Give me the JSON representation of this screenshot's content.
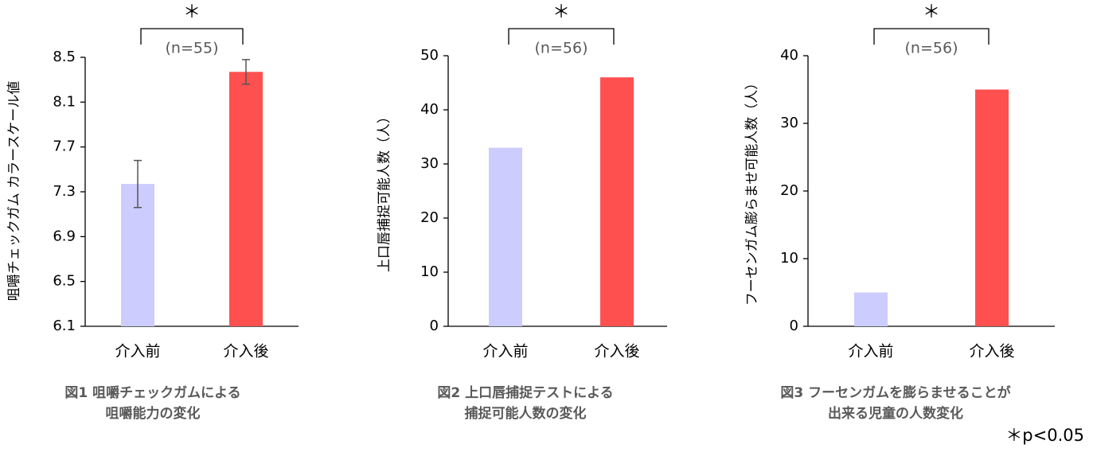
{
  "chart_data": [
    {
      "type": "bar",
      "ylabel": "咀嚼チェックガム カラースケール値",
      "categories": [
        "介入前",
        "介入後"
      ],
      "values": [
        7.37,
        8.37
      ],
      "errors": [
        0.21,
        0.11
      ],
      "colors": [
        "#ccccff",
        "#ff5050"
      ],
      "ylim": [
        6.1,
        8.5
      ],
      "yticks": [
        6.1,
        6.5,
        6.9,
        7.3,
        7.7,
        8.1,
        8.5
      ],
      "significance": "＊",
      "n_label": "(n=55)",
      "caption": [
        "図1 咀嚼チェックガムによる",
        "咀嚼能力の変化"
      ]
    },
    {
      "type": "bar",
      "ylabel": "上口唇捕捉可能人数（人）",
      "categories": [
        "介入前",
        "介入後"
      ],
      "values": [
        33,
        46
      ],
      "colors": [
        "#ccccff",
        "#ff5050"
      ],
      "ylim": [
        0,
        50
      ],
      "yticks": [
        0,
        10,
        20,
        30,
        40,
        50
      ],
      "significance": "＊",
      "n_label": "(n=56)",
      "caption": [
        "図2 上口唇捕捉テストによる",
        "捕捉可能人数の変化"
      ]
    },
    {
      "type": "bar",
      "ylabel": "フーセンガム膨らませ可能人数（人）",
      "categories": [
        "介入前",
        "介入後"
      ],
      "values": [
        5,
        35
      ],
      "colors": [
        "#ccccff",
        "#ff5050"
      ],
      "ylim": [
        0,
        40
      ],
      "yticks": [
        0,
        10,
        20,
        30,
        40
      ],
      "significance": "＊",
      "n_label": "(n=56)",
      "caption": [
        "図3 フーセンガムを膨らませることが",
        "出来る児童の人数変化"
      ]
    }
  ],
  "footnote": "＊p<0.05"
}
